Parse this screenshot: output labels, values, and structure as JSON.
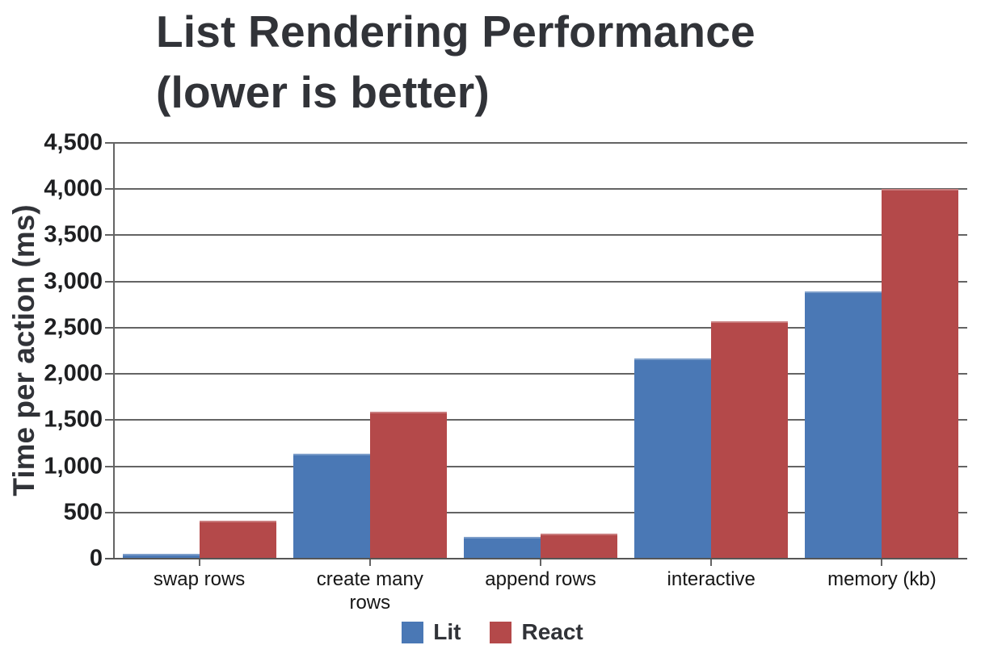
{
  "title": {
    "line1": "List Rendering Performance",
    "line2": "(lower is better)"
  },
  "chart_data": {
    "type": "bar",
    "title": "List Rendering Performance (lower is better)",
    "xlabel": "",
    "ylabel": "Time per action (ms)",
    "ylim": [
      0,
      4500
    ],
    "ytick_step": 500,
    "grid": true,
    "legend_position": "bottom",
    "categories": [
      "swap rows",
      "create many rows",
      "append rows",
      "interactive",
      "memory (kb)"
    ],
    "series": [
      {
        "name": "Lit",
        "color": "#4a78b5",
        "values": [
          50,
          1140,
          240,
          2170,
          2890
        ]
      },
      {
        "name": "React",
        "color": "#b4494a",
        "values": [
          410,
          1590,
          270,
          2570,
          4000
        ]
      }
    ]
  },
  "colors": {
    "text": "#313338",
    "tick_text": "#1e1f21",
    "gridline": "#646464",
    "axis": "#565656",
    "background": "#ffffff"
  }
}
